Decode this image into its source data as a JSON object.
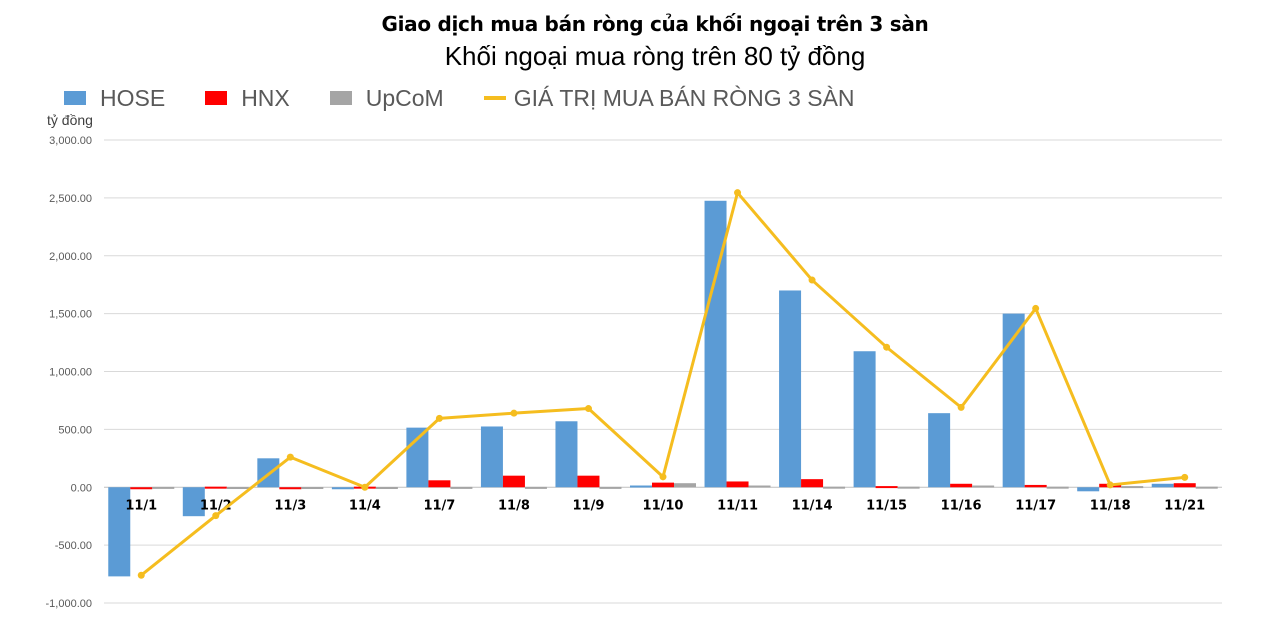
{
  "title": "Giao dịch mua bán ròng của khối ngoại trên 3 sàn",
  "subtitle": "Khối ngoại mua ròng trên 80 tỷ đồng",
  "unit_label": "tỷ đồng",
  "legend": [
    {
      "name": "HOSE",
      "color": "#5b9bd5",
      "kind": "bar"
    },
    {
      "name": "HNX",
      "color": "#ff0000",
      "kind": "bar"
    },
    {
      "name": "UpCoM",
      "color": "#a5a5a5",
      "kind": "bar"
    },
    {
      "name": "GIÁ TRỊ MUA BÁN RÒNG 3 SÀN",
      "color": "#f5bd1f",
      "kind": "line"
    }
  ],
  "chart_data": {
    "type": "bar",
    "title": "Giao dịch mua bán ròng của khối ngoại trên 3 sàn",
    "subtitle": "Khối ngoại mua ròng trên 80 tỷ đồng",
    "xlabel": "",
    "ylabel": "tỷ đồng",
    "ylim": [
      -1000,
      3000
    ],
    "yticks": [
      -1000,
      -500,
      0,
      500,
      1000,
      1500,
      2000,
      2500,
      3000
    ],
    "ytick_labels": [
      "-1,000.00",
      "-500.00",
      "0.00",
      "500.00",
      "1,000.00",
      "1,500.00",
      "2,000.00",
      "2,500.00",
      "3,000.00"
    ],
    "grid": true,
    "legend_position": "top",
    "categories": [
      "11/1",
      "11/2",
      "11/3",
      "11/4",
      "11/7",
      "11/8",
      "11/9",
      "11/10",
      "11/11",
      "11/14",
      "11/15",
      "11/16",
      "11/17",
      "11/18",
      "11/21"
    ],
    "series": [
      {
        "name": "HOSE",
        "type": "bar",
        "color": "#5b9bd5",
        "values": [
          -770,
          -250,
          250,
          -10,
          515,
          525,
          570,
          15,
          2475,
          1700,
          1175,
          640,
          1500,
          -35,
          30
        ]
      },
      {
        "name": "HNX",
        "type": "bar",
        "color": "#ff0000",
        "values": [
          -10,
          5,
          -10,
          5,
          60,
          100,
          100,
          40,
          50,
          70,
          10,
          30,
          20,
          30,
          35
        ]
      },
      {
        "name": "UpCoM",
        "type": "bar",
        "color": "#a5a5a5",
        "values": [
          3,
          2,
          2,
          2,
          3,
          3,
          3,
          35,
          15,
          5,
          5,
          15,
          5,
          10,
          5
        ]
      },
      {
        "name": "GIÁ TRỊ MUA BÁN RÒNG 3 SÀN",
        "type": "line",
        "color": "#f5bd1f",
        "values": [
          -760,
          -245,
          260,
          0,
          595,
          640,
          680,
          90,
          2545,
          1790,
          1210,
          690,
          1545,
          20,
          85
        ]
      }
    ]
  }
}
